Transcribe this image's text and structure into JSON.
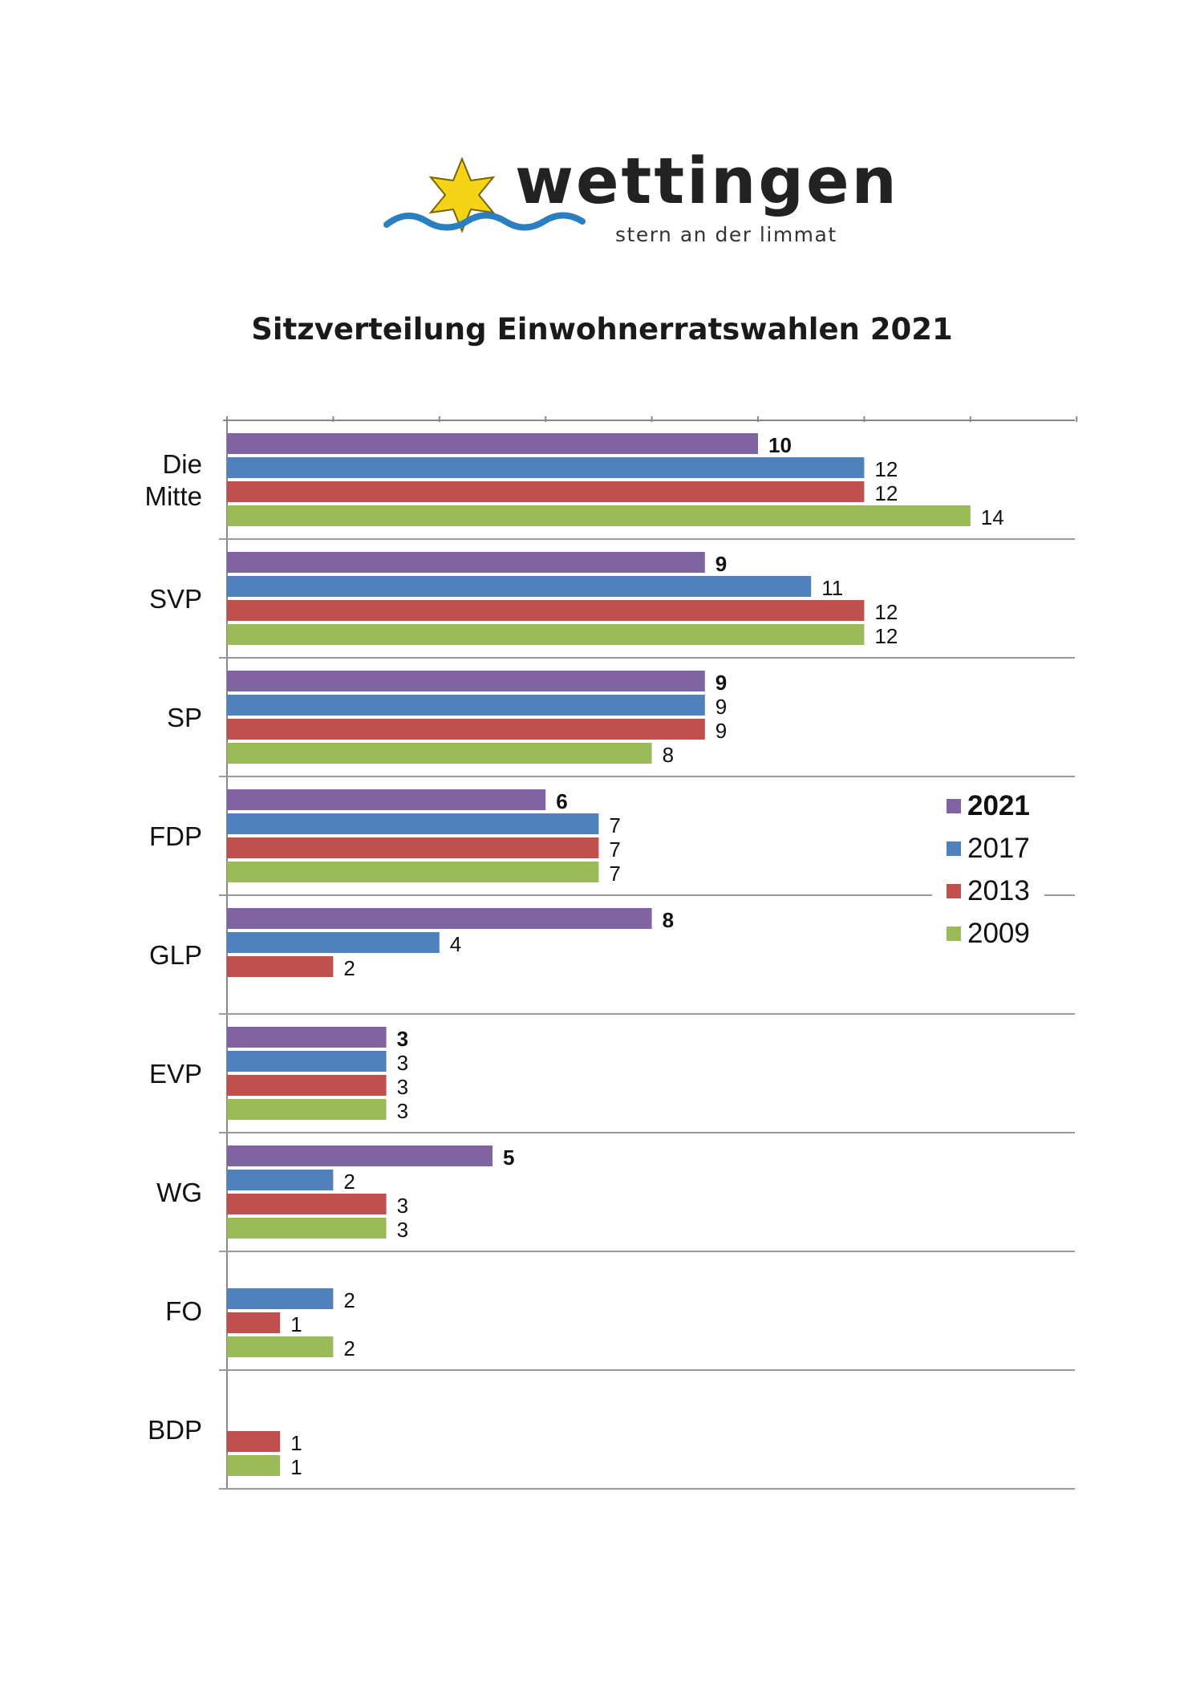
{
  "logo": {
    "name": "wettingen",
    "tagline": "stern an der limmat",
    "star_color": "#F5D316",
    "wave_color": "#2A7FC0"
  },
  "title": "Sitzverteilung Einwohnerratswahlen 2021",
  "chart_data": {
    "type": "bar",
    "orientation": "horizontal",
    "title": "Sitzverteilung Einwohnerratswahlen 2021",
    "categories": [
      [
        "Die",
        "Mitte"
      ],
      [
        "SVP"
      ],
      [
        "SP"
      ],
      [
        "FDP"
      ],
      [
        "GLP"
      ],
      [
        "EVP"
      ],
      [
        "WG"
      ],
      [
        "FO"
      ],
      [
        "BDP"
      ]
    ],
    "series": [
      {
        "name": "2021",
        "color": "#8064A2",
        "bold": true,
        "values": [
          10,
          9,
          9,
          6,
          8,
          3,
          5,
          null,
          null
        ]
      },
      {
        "name": "2017",
        "color": "#4F81BD",
        "bold": false,
        "values": [
          12,
          11,
          9,
          7,
          4,
          3,
          2,
          2,
          null
        ]
      },
      {
        "name": "2013",
        "color": "#C0504D",
        "bold": false,
        "values": [
          12,
          12,
          9,
          7,
          2,
          3,
          3,
          1,
          1
        ]
      },
      {
        "name": "2009",
        "color": "#9BBB59",
        "bold": false,
        "values": [
          14,
          12,
          8,
          7,
          null,
          3,
          3,
          2,
          1
        ]
      }
    ],
    "xlim": [
      0,
      16
    ],
    "x_tick_step": 2,
    "x_tick_labels": false,
    "grid": "horizontal separators between categories",
    "legend": {
      "position": "right, beside FDP and GLP"
    }
  }
}
